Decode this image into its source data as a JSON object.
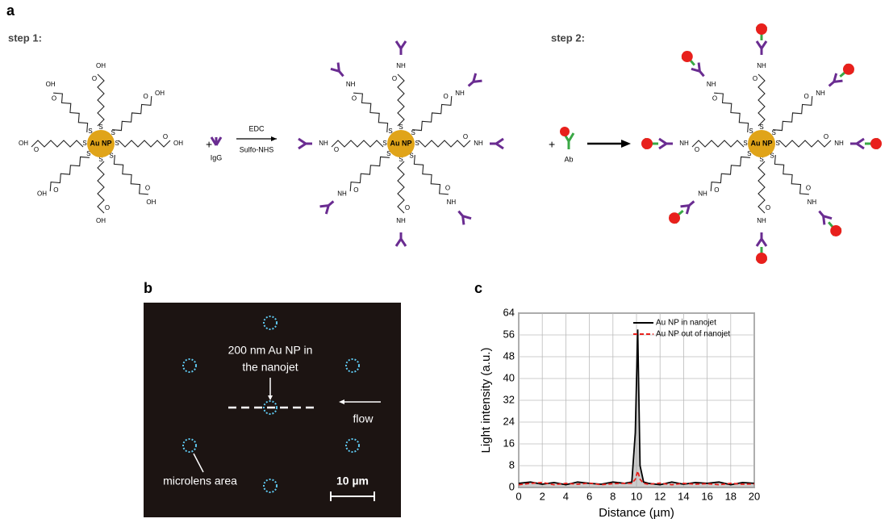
{
  "panel_labels": {
    "a": "a",
    "b": "b",
    "c": "c"
  },
  "scheme": {
    "step1": "step 1:",
    "step2": "step 2:",
    "core": "Au NP",
    "acid_end": "OH",
    "amide": "NH",
    "carbonyl": "O",
    "sulfur": "S",
    "plus": "+",
    "igg": "IgG",
    "ab": "Ab",
    "reagent1": "EDC",
    "reagent2": "Sulfo-NHS"
  },
  "micrograph": {
    "particle_label_1": "200 nm Au NP in",
    "particle_label_2": "the nanojet",
    "flow": "flow",
    "microlens": "microlens area",
    "scale": "10 µm"
  },
  "chart_data": {
    "type": "line",
    "xlabel": "Distance (µm)",
    "ylabel": "Light intensity (a.u.)",
    "x": [
      0,
      1,
      2,
      3,
      4,
      5,
      6,
      7,
      8,
      9,
      9.6,
      9.9,
      10.1,
      10.3,
      10.6,
      11,
      12,
      13,
      14,
      15,
      16,
      17,
      18,
      19,
      20
    ],
    "series": [
      {
        "name": "Au NP in nanojet",
        "color": "#000000",
        "dash": false,
        "values": [
          1.5,
          2,
          1.2,
          1.8,
          1,
          2,
          1.5,
          1.2,
          2,
          1.5,
          2,
          20,
          58,
          8,
          2,
          1.5,
          1,
          2,
          1.2,
          1.8,
          1.5,
          2,
          1,
          1.8,
          1.5
        ]
      },
      {
        "name": "Au NP out of nanojet",
        "color": "#e8201c",
        "dash": true,
        "values": [
          1,
          1.5,
          1.8,
          1,
          1.5,
          1.2,
          1.6,
          1,
          1.4,
          1.5,
          1.5,
          3,
          6,
          3,
          1.5,
          1.2,
          1.6,
          1,
          1.5,
          1.2,
          1.4,
          1,
          1.5,
          1.2,
          1.3
        ]
      }
    ],
    "xlim": [
      0,
      20
    ],
    "xticks": [
      0,
      2,
      4,
      6,
      8,
      10,
      12,
      14,
      16,
      18,
      20
    ],
    "ylim": [
      0,
      64
    ],
    "yticks": [
      0,
      8,
      16,
      24,
      32,
      40,
      48,
      56,
      64
    ],
    "grid": true,
    "legend": "upper right"
  }
}
